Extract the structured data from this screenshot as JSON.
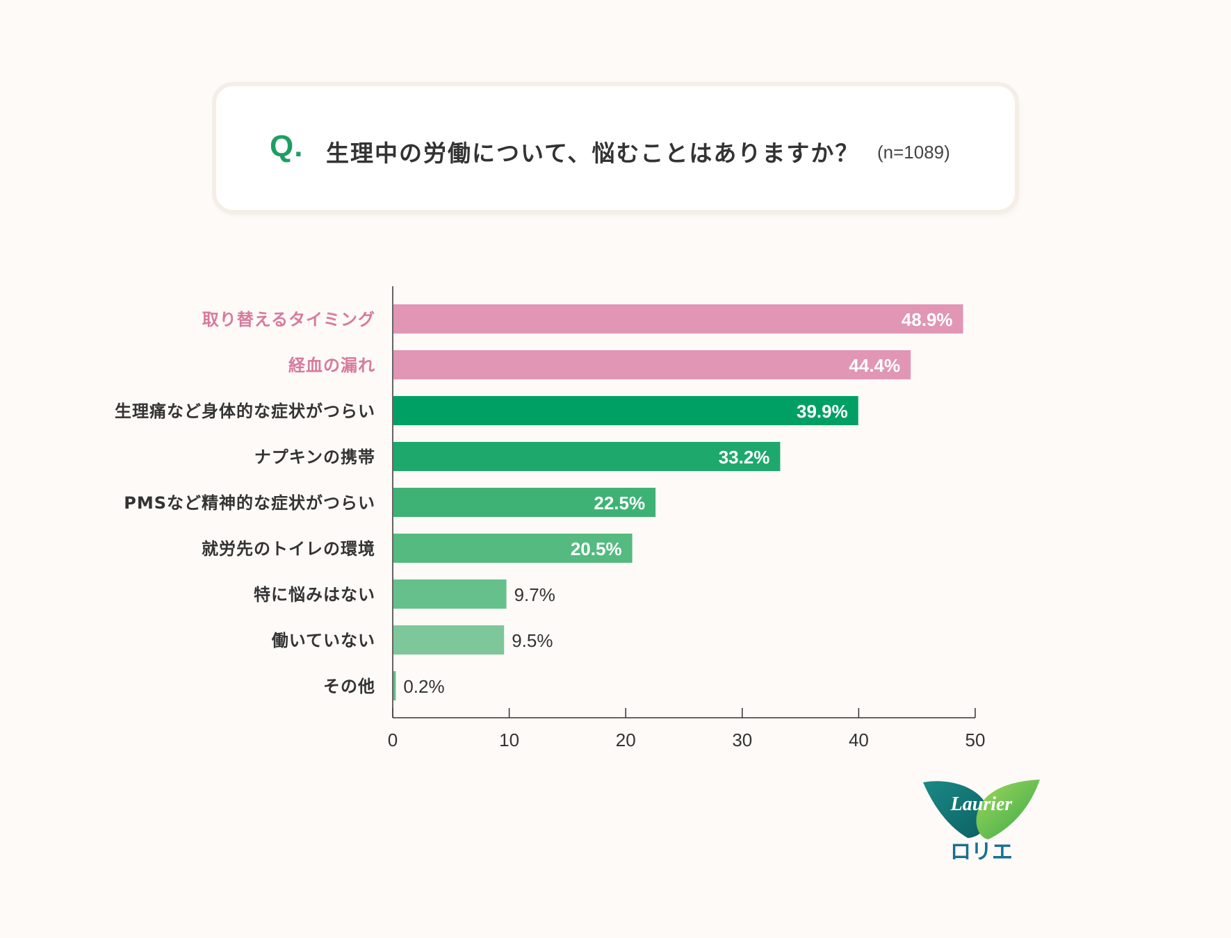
{
  "question": {
    "mark": "Q.",
    "text": "生理中の労働について、悩むことはありますか？",
    "sample_size": "(n=1089)"
  },
  "colors": {
    "background": "#fdfaf7",
    "accent_green": "#1e9e64",
    "pink": "#e096b4",
    "pink_label": "#d77a9e"
  },
  "chart_data": {
    "type": "bar",
    "orientation": "horizontal",
    "categories": [
      "取り替えるタイミング",
      "経血の漏れ",
      "生理痛など身体的な症状がつらい",
      "ナプキンの携帯",
      "PMSなど精神的な症状がつらい",
      "就労先のトイレの環境",
      "特に悩みはない",
      "働いていない",
      "その他"
    ],
    "values": [
      48.9,
      44.4,
      39.9,
      33.2,
      22.5,
      20.5,
      9.7,
      9.5,
      0.2
    ],
    "value_labels": [
      "48.9%",
      "44.4%",
      "39.9%",
      "33.2%",
      "22.5%",
      "20.5%",
      "9.7%",
      "9.5%",
      "0.2%"
    ],
    "bar_colors": [
      "#e096b4",
      "#e096b4",
      "#00a064",
      "#1ea86c",
      "#3db274",
      "#55ba80",
      "#66c08c",
      "#7dc79a",
      "#66b98a"
    ],
    "label_colors": [
      "#d77a9e",
      "#d77a9e",
      "#333333",
      "#333333",
      "#333333",
      "#333333",
      "#333333",
      "#333333",
      "#333333"
    ],
    "label_inside": [
      true,
      true,
      true,
      true,
      true,
      true,
      false,
      false,
      false
    ],
    "xlim": [
      0,
      50
    ],
    "xticks": [
      "0",
      "10",
      "20",
      "30",
      "40",
      "50"
    ],
    "grid": false
  },
  "logo": {
    "wordmark": "Laurier",
    "katakana": "ロリエ"
  }
}
